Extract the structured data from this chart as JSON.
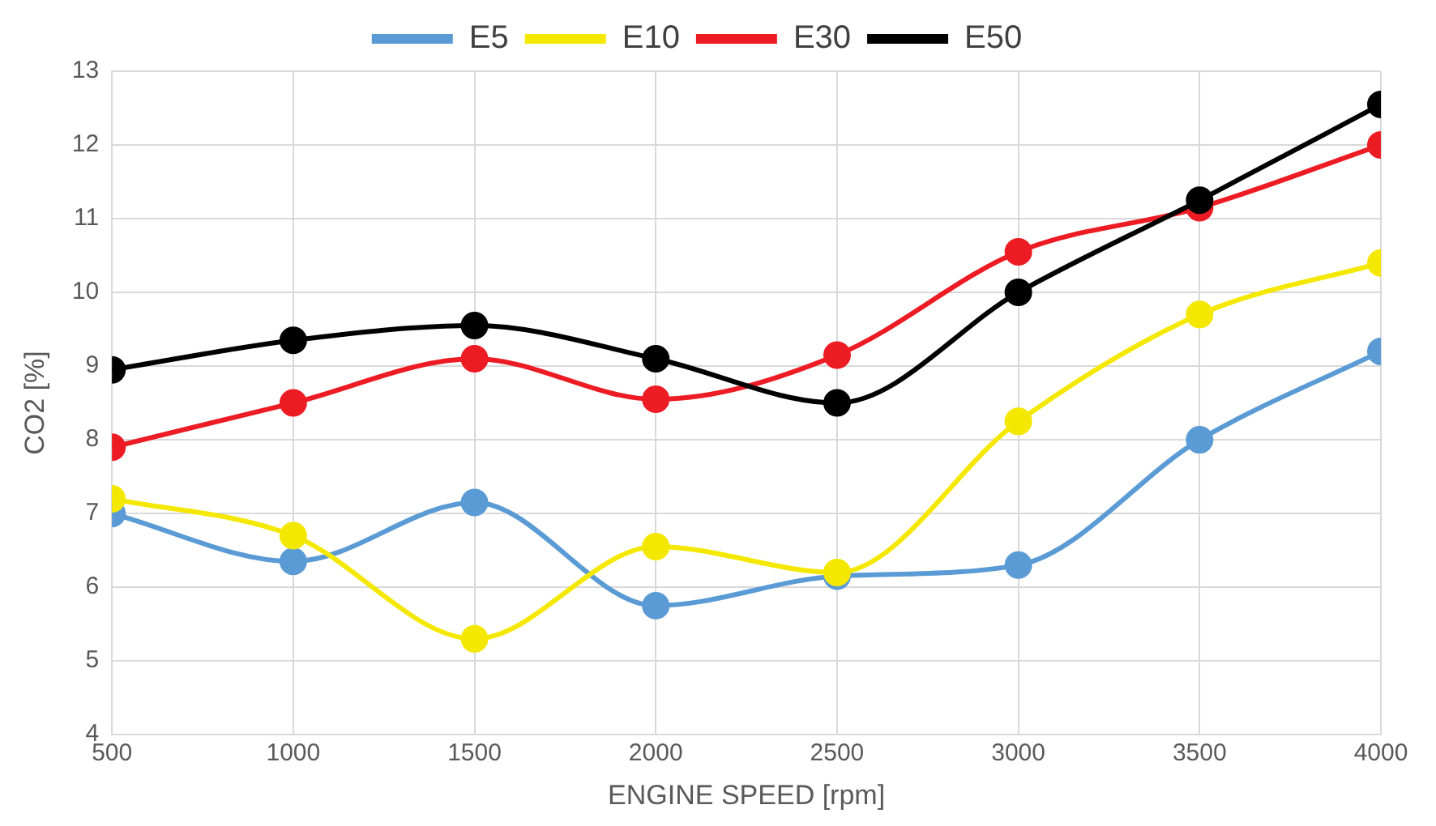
{
  "chart_data": {
    "type": "line",
    "xlabel": "ENGINE SPEED [rpm]",
    "ylabel": "CO2 [%]",
    "x": [
      500,
      1000,
      1500,
      2000,
      2500,
      3000,
      3500,
      4000
    ],
    "series": [
      {
        "name": "E5",
        "color": "#5b9bd5",
        "values": [
          7.0,
          6.35,
          7.15,
          5.75,
          6.15,
          6.3,
          8.0,
          9.2
        ]
      },
      {
        "name": "E10",
        "color": "#f5e800",
        "values": [
          7.2,
          6.7,
          5.3,
          6.55,
          6.2,
          8.25,
          9.7,
          10.4
        ]
      },
      {
        "name": "E30",
        "color": "#ed1c24",
        "values": [
          7.9,
          8.5,
          9.1,
          8.55,
          9.15,
          10.55,
          11.15,
          12.0
        ]
      },
      {
        "name": "E50",
        "color": "#000000",
        "values": [
          8.95,
          9.35,
          9.55,
          9.1,
          8.5,
          10.0,
          11.25,
          12.55
        ]
      }
    ],
    "xlim": [
      500,
      4000
    ],
    "xticks": [
      500,
      1000,
      1500,
      2000,
      2500,
      3000,
      3500,
      4000
    ],
    "ylim": [
      4,
      13
    ],
    "yticks": [
      4,
      5,
      6,
      7,
      8,
      9,
      10,
      11,
      12,
      13
    ],
    "grid": true,
    "legend": "top",
    "marker": "circle",
    "line_style": "solid"
  }
}
